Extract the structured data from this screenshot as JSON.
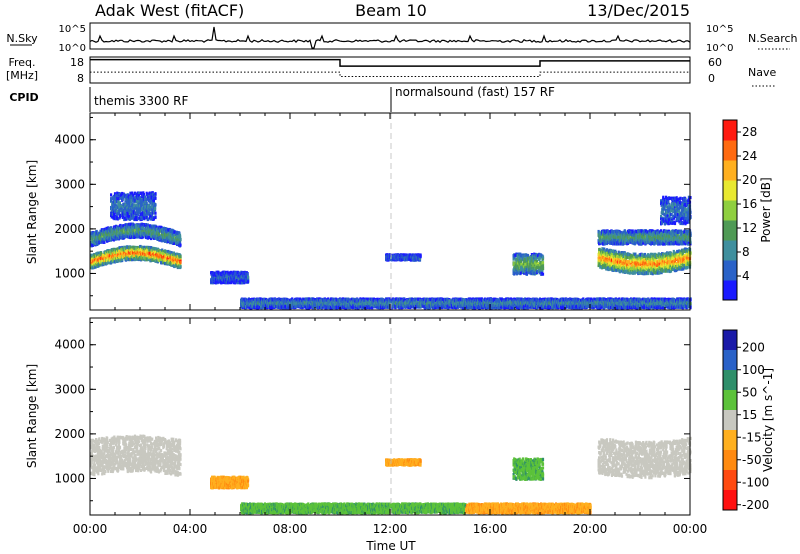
{
  "header": {
    "station": "Adak West (fitACF)",
    "beam": "Beam 10",
    "date": "13/Dec/2015"
  },
  "strip_panels": {
    "nsky": {
      "left_label": "N.Sky",
      "left_ticks": [
        "10^5",
        "10^0"
      ],
      "right_ticks": [
        "10^5",
        "10^0"
      ],
      "right_label": "N.Search"
    },
    "freq": {
      "left_label_1": "Freq.",
      "left_label_2": "[MHz]",
      "left_ticks": [
        "18",
        "8"
      ],
      "right_ticks": [
        "60",
        "0"
      ],
      "right_label": "Nave",
      "segments": [
        {
          "start_h": 0,
          "end_h": 10.0,
          "freq_mhz": 17.0,
          "nave": 25
        },
        {
          "start_h": 10.0,
          "end_h": 18.0,
          "freq_mhz": 14.5,
          "nave": 15
        },
        {
          "start_h": 18.0,
          "end_h": 24.0,
          "freq_mhz": 16.5,
          "nave": 25
        }
      ]
    },
    "cpid": {
      "left_label": "CPID",
      "programs": [
        {
          "name": "themis 3300 RF",
          "start_h": 0,
          "end_h": 12
        },
        {
          "name": "normalsound (fast) 157 RF",
          "start_h": 12,
          "end_h": 24
        }
      ]
    }
  },
  "chart_data": [
    {
      "type": "heatmap",
      "panel": "power",
      "ylabel": "Slant Range [km]",
      "xlim": [
        0,
        24
      ],
      "ylim": [
        180,
        4600
      ],
      "y_ticks": [
        "1000",
        "2000",
        "3000",
        "4000"
      ],
      "colorbar": {
        "label": "Power [dB]",
        "ticks": [
          "4",
          "8",
          "12",
          "16",
          "20",
          "24",
          "28"
        ],
        "range": [
          0,
          30
        ],
        "colors": [
          "#1a1aff",
          "#2a62c8",
          "#3f8f9e",
          "#4f9a55",
          "#8fcf3f",
          "#e8e830",
          "#ffb020",
          "#ff6a10",
          "#ff1a10"
        ]
      },
      "echo_regions": [
        {
          "start_h": 0.0,
          "end_h": 3.6,
          "center_km": 1250,
          "halfwidth_km": 150,
          "drift_km": 200,
          "level": 0.85
        },
        {
          "start_h": 0.0,
          "end_h": 3.6,
          "center_km": 1750,
          "halfwidth_km": 150,
          "drift_km": 200,
          "level": 0.35
        },
        {
          "start_h": 0.8,
          "end_h": 2.6,
          "center_km": 2500,
          "halfwidth_km": 300,
          "drift_km": 0,
          "level": 0.2
        },
        {
          "start_h": 4.8,
          "end_h": 6.3,
          "center_km": 900,
          "halfwidth_km": 120,
          "drift_km": 0,
          "level": 0.15
        },
        {
          "start_h": 6.0,
          "end_h": 24.0,
          "center_km": 320,
          "halfwidth_km": 100,
          "drift_km": 0,
          "level": 0.25
        },
        {
          "start_h": 11.8,
          "end_h": 13.2,
          "center_km": 1350,
          "halfwidth_km": 60,
          "drift_km": 0,
          "level": 0.15
        },
        {
          "start_h": 16.9,
          "end_h": 18.1,
          "center_km": 1200,
          "halfwidth_km": 230,
          "drift_km": 0,
          "level": 0.45
        },
        {
          "start_h": 20.3,
          "end_h": 24.0,
          "center_km": 1350,
          "halfwidth_km": 220,
          "drift_km": -150,
          "level": 0.8
        },
        {
          "start_h": 20.3,
          "end_h": 24.0,
          "center_km": 1800,
          "halfwidth_km": 150,
          "drift_km": 0,
          "level": 0.35
        },
        {
          "start_h": 22.8,
          "end_h": 24.0,
          "center_km": 2400,
          "halfwidth_km": 300,
          "drift_km": 0,
          "level": 0.2
        }
      ]
    },
    {
      "type": "heatmap",
      "panel": "velocity",
      "ylabel": "Slant Range [km]",
      "xlabel": "Time UT",
      "xlim": [
        0,
        24
      ],
      "ylim": [
        180,
        4600
      ],
      "y_ticks": [
        "1000",
        "2000",
        "3000",
        "4000"
      ],
      "x_ticks": [
        "00:00",
        "04:00",
        "08:00",
        "12:00",
        "16:00",
        "20:00",
        "00:00"
      ],
      "colorbar": {
        "label": "Velocity [m s^-1]",
        "ticks": [
          "200",
          "100",
          "50",
          "15",
          "-15",
          "-50",
          "-100",
          "-200"
        ],
        "colors": [
          "#1a1aa8",
          "#2a62c8",
          "#2f8f6a",
          "#5cc23a",
          "#c8c8c0",
          "#ffb020",
          "#ff8a10",
          "#ff4a10",
          "#ff1010"
        ]
      },
      "echo_regions": [
        {
          "start_h": 0.0,
          "end_h": 3.6,
          "center_km": 1450,
          "halfwidth_km": 400,
          "drift_km": 100,
          "class": "ground"
        },
        {
          "start_h": 4.8,
          "end_h": 6.3,
          "center_km": 900,
          "halfwidth_km": 120,
          "drift_km": 0,
          "class": "negative"
        },
        {
          "start_h": 6.0,
          "end_h": 15.0,
          "center_km": 320,
          "halfwidth_km": 100,
          "drift_km": 0,
          "class": "positive"
        },
        {
          "start_h": 15.0,
          "end_h": 20.0,
          "center_km": 320,
          "halfwidth_km": 100,
          "drift_km": 0,
          "class": "negative"
        },
        {
          "start_h": 11.8,
          "end_h": 13.2,
          "center_km": 1350,
          "halfwidth_km": 60,
          "drift_km": 0,
          "class": "negative"
        },
        {
          "start_h": 16.9,
          "end_h": 18.1,
          "center_km": 1200,
          "halfwidth_km": 230,
          "drift_km": 0,
          "class": "positive"
        },
        {
          "start_h": 20.3,
          "end_h": 24.0,
          "center_km": 1500,
          "halfwidth_km": 400,
          "drift_km": -100,
          "class": "ground"
        }
      ]
    }
  ]
}
